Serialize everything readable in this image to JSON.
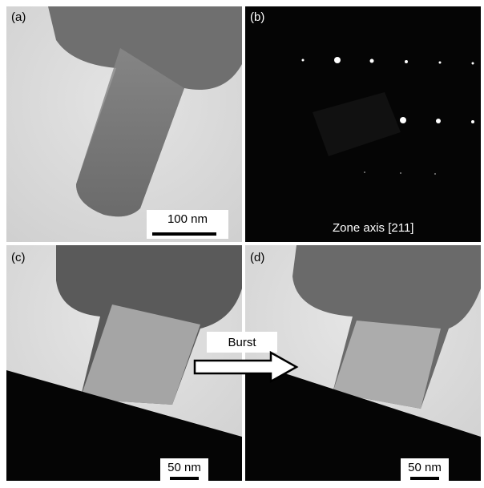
{
  "panels": [
    {
      "label": "(a)",
      "scale_bar": "100 nm"
    },
    {
      "label": "(b)",
      "annotation": "Zone axis [211]"
    },
    {
      "label": "(c)",
      "scale_bar": "50 nm"
    },
    {
      "label": "(d)",
      "scale_bar": "50 nm"
    }
  ],
  "arrow": {
    "label": "Burst"
  }
}
